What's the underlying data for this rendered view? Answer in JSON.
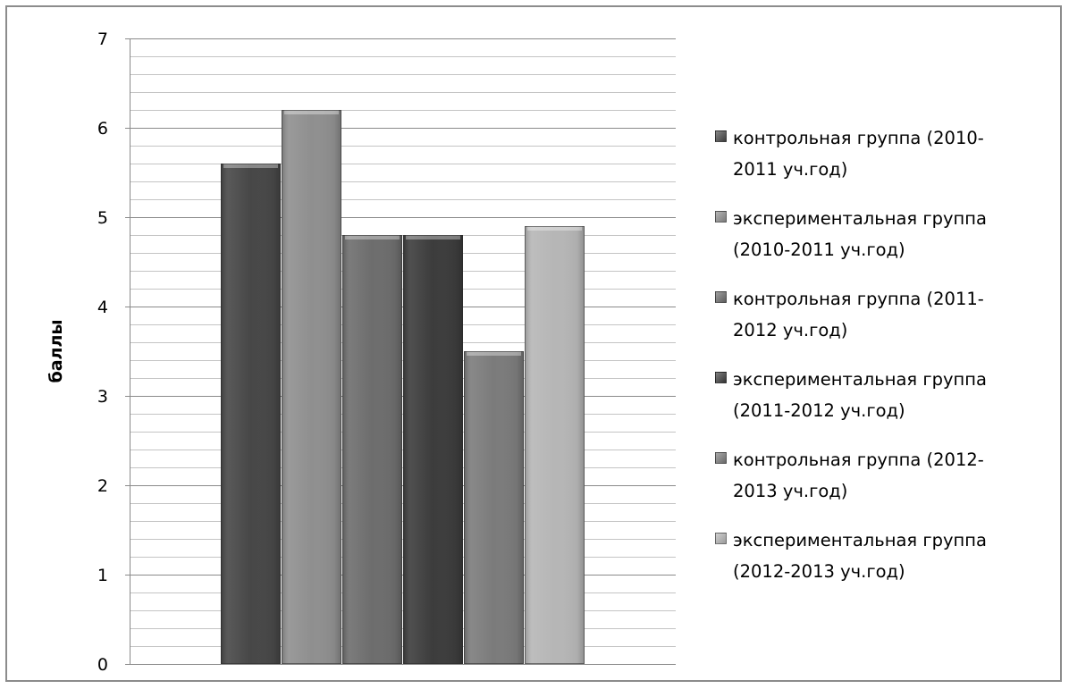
{
  "chart_data": {
    "type": "bar",
    "ylabel": "баллы",
    "ylim": [
      0,
      7
    ],
    "yticks": [
      "0",
      "1",
      "2",
      "3",
      "4",
      "5",
      "6",
      "7"
    ],
    "minor_grid_step": 0.2,
    "grid": true,
    "legend_position": "right",
    "series": [
      {
        "name": "контрольная группа (2010-2011 уч.год)",
        "value": 5.6,
        "color": "#474747"
      },
      {
        "name": "экспериментальная группа (2010-2011 уч.год)",
        "value": 6.2,
        "color": "#8f8f8f"
      },
      {
        "name": "контрольная группа (2011-2012 уч.год)",
        "value": 4.8,
        "color": "#6d6d6d"
      },
      {
        "name": "экспериментальная группа (2011-2012 уч.год)",
        "value": 4.8,
        "color": "#3c3c3c"
      },
      {
        "name": "контрольная группа (2012-2013 уч.год)",
        "value": 3.5,
        "color": "#7b7b7b"
      },
      {
        "name": "экспериментальная группа (2012-2013 уч.год)",
        "value": 4.9,
        "color": "#b6b6b6"
      }
    ]
  },
  "legend": {
    "items": [
      [
        "контрольная группа (2010-",
        "2011 уч.год)"
      ],
      [
        "экспериментальная группа",
        "(2010-2011 уч.год)"
      ],
      [
        "контрольная группа (2011-",
        "2012  уч.год)"
      ],
      [
        "экспериментальная группа",
        "(2011-2012  уч.год)"
      ],
      [
        "контрольная группа (2012-",
        "2013  уч.год)"
      ],
      [
        "экспериментальная группа",
        "(2012-2013  уч.год)"
      ]
    ]
  }
}
